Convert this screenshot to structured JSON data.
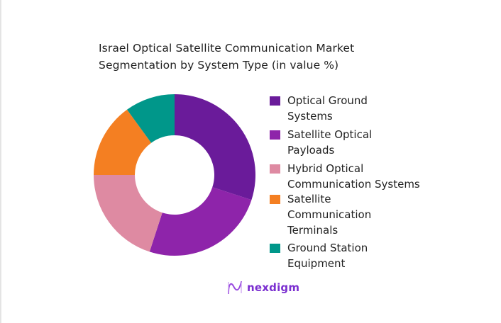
{
  "chart_data": {
    "type": "pie",
    "variant": "donut",
    "title": "Israel Optical Satellite Communication Market Segmentation by System Type (in value %)",
    "categories": [
      "Optical Ground Systems",
      "Satellite Optical Payloads",
      "Hybrid Optical Communication Systems",
      "Satellite Communication Terminals",
      "Ground Station Equipment"
    ],
    "values": [
      30,
      25,
      20,
      15,
      10
    ],
    "colors": [
      "#6a1b9a",
      "#8e24aa",
      "#de8aa2",
      "#f47f22",
      "#00978a"
    ],
    "unit": "%",
    "legend_position": "right",
    "start_angle_deg": 0,
    "direction": "clockwise"
  },
  "title": {
    "line1": "Israel Optical Satellite Communication Market",
    "line2": "Segmentation by System Type (in value %)"
  },
  "legend": [
    {
      "label": "Optical Ground\nSystems",
      "color": "#6a1b9a"
    },
    {
      "label": "Satellite Optical\nPayloads",
      "color": "#8e24aa"
    },
    {
      "label": "Hybrid Optical\nCommunication Systems",
      "color": "#de8aa2"
    },
    {
      "label": "Satellite\nCommunication\nTerminals",
      "color": "#f47f22"
    },
    {
      "label": "Ground Station\nEquipment",
      "color": "#00978a"
    }
  ],
  "brand": {
    "name": "nexdigm",
    "color": "#7b2fd0"
  }
}
